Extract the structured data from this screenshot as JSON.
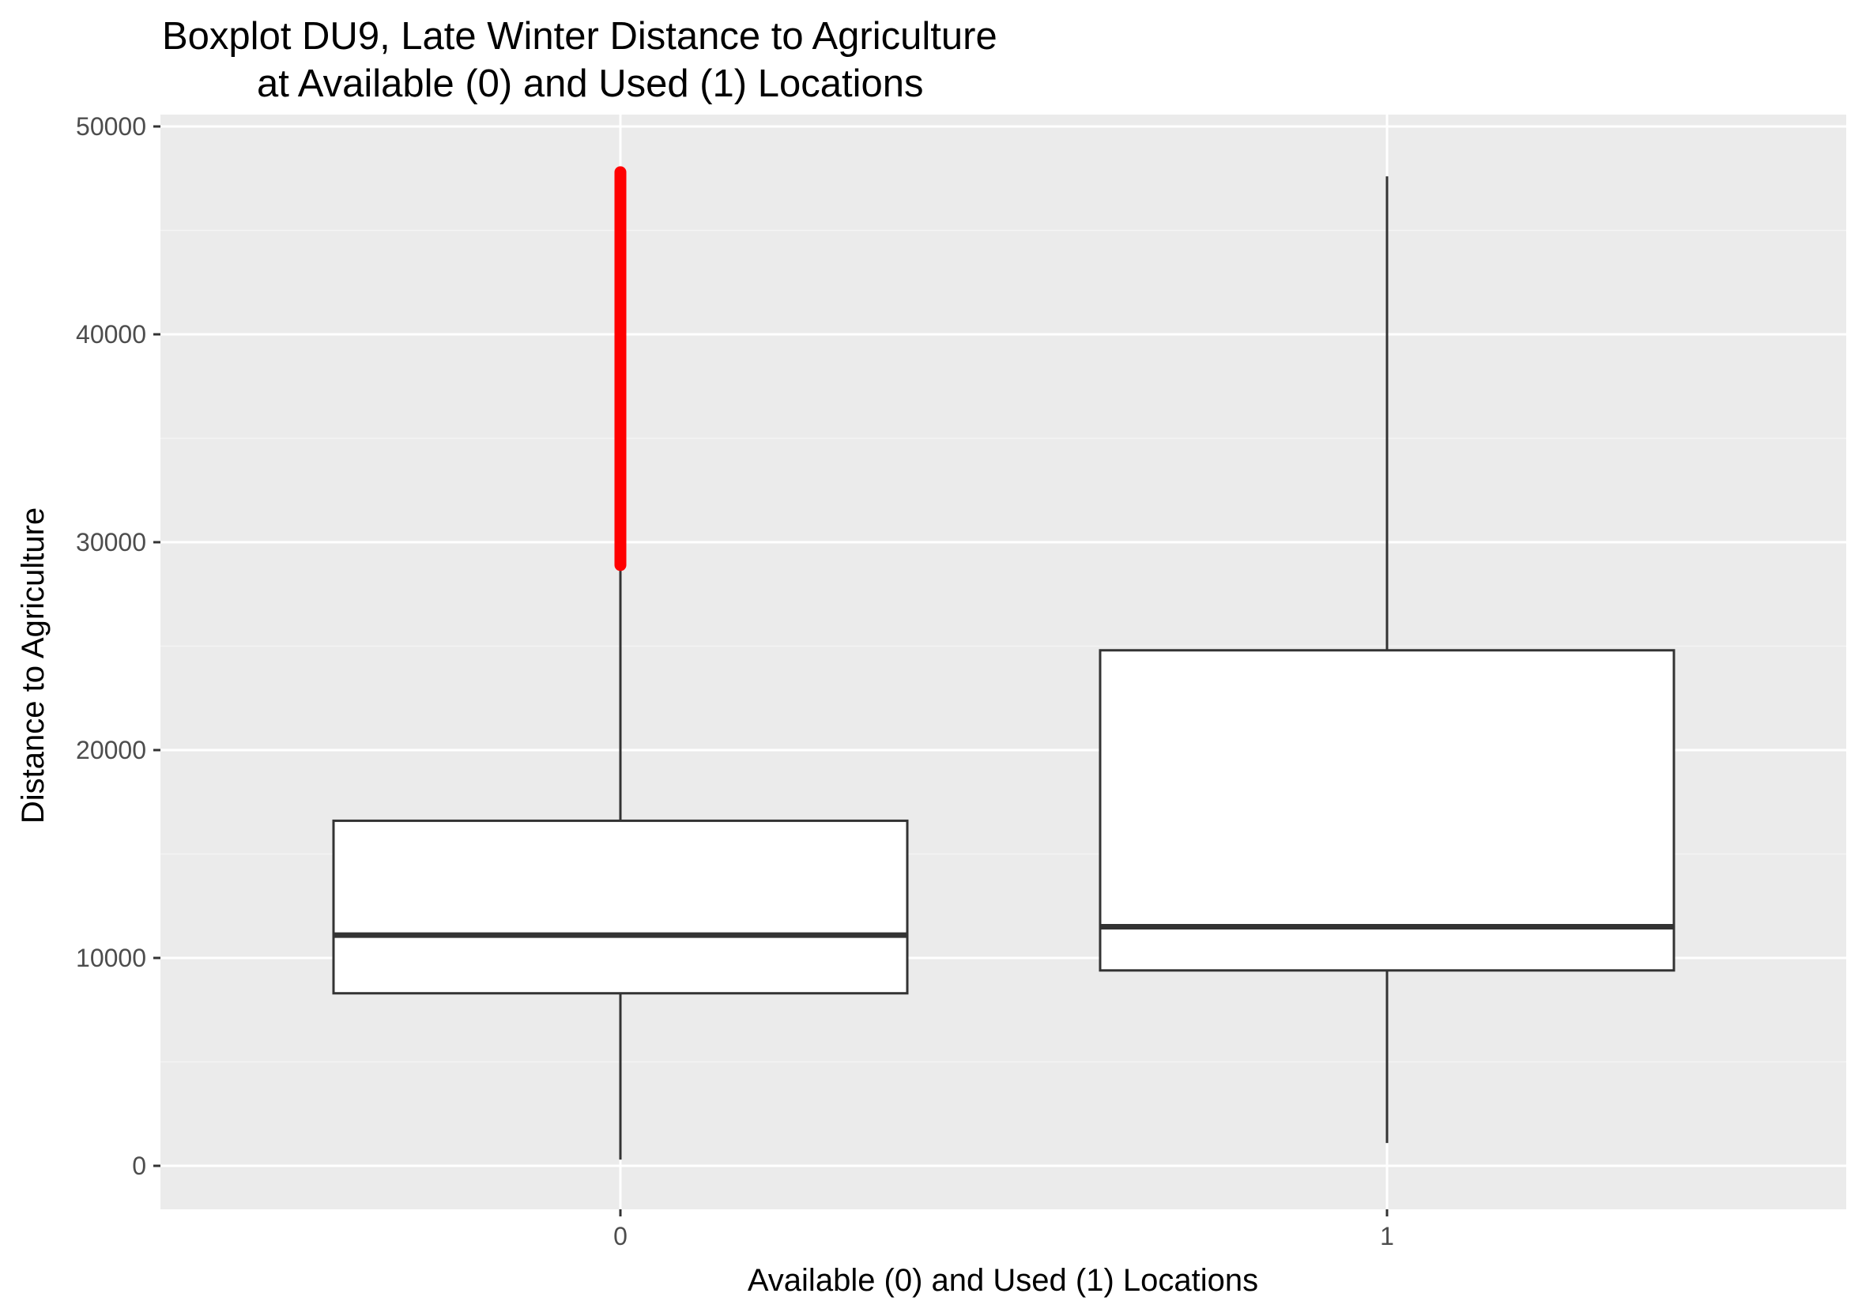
{
  "chart_data": {
    "type": "boxplot",
    "title": "Boxplot DU9, Late Winter Distance to Agriculture",
    "subtitle": "at Available (0) and Used (1) Locations",
    "xlabel": "Available (0) and Used (1) Locations",
    "ylabel": "Distance to Agriculture",
    "ylim": [
      -2000,
      50500
    ],
    "yticks": [
      0,
      10000,
      20000,
      30000,
      40000,
      50000
    ],
    "ytick_labels": [
      "0",
      "10000",
      "20000",
      "30000",
      "40000",
      "50000"
    ],
    "grid": true,
    "categories": [
      "0",
      "1"
    ],
    "boxes": [
      {
        "category": "0",
        "whisker_low": 300,
        "q1": 8300,
        "median": 11100,
        "q3": 16600,
        "whisker_high": 28900,
        "outlier_range": [
          28900,
          47800
        ]
      },
      {
        "category": "1",
        "whisker_low": 1100,
        "q1": 9400,
        "median": 11500,
        "q3": 24800,
        "whisker_high": 47600,
        "outlier_range": null
      }
    ],
    "colors": {
      "panel_background": "#ebebeb",
      "grid_major": "#ffffff",
      "grid_minor": "#f4f4f4",
      "box_line": "#333333",
      "box_fill": "#ffffff",
      "outlier": "#ff0000",
      "tick_text": "#4d4d4d"
    }
  }
}
